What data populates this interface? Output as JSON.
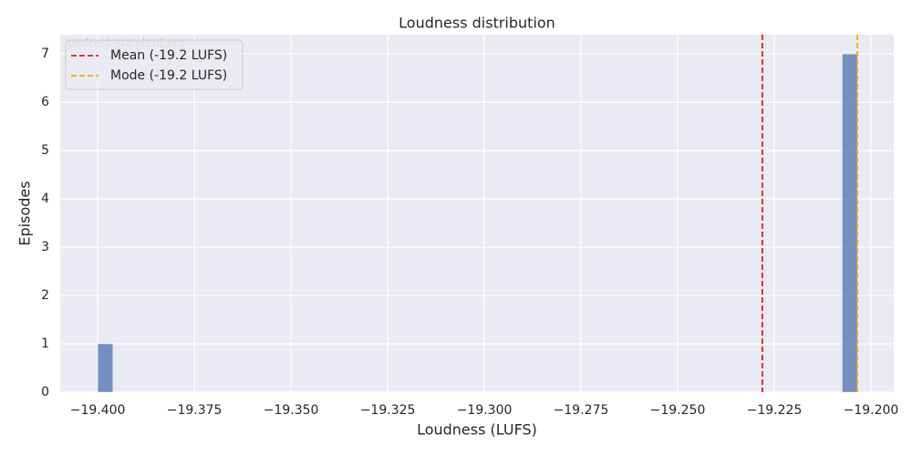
{
  "chart_data": {
    "type": "histogram",
    "title": "Loudness distribution",
    "xlabel": "Loudness (LUFS)",
    "ylabel": "Episodes",
    "watermark": "podcast-standard.org",
    "bins": [
      -19.4,
      -19.39607,
      -19.39214,
      -19.38821,
      -19.38428,
      -19.38035,
      -19.37642,
      -19.37249,
      -19.36856,
      -19.36463,
      -19.3607,
      -19.35677,
      -19.35284,
      -19.34891,
      -19.34498,
      -19.34105,
      -19.33712,
      -19.33319,
      -19.32926,
      -19.32533,
      -19.3214,
      -19.31747,
      -19.31354,
      -19.30961,
      -19.30568,
      -19.30175,
      -19.29782,
      -19.29389,
      -19.28996,
      -19.28603,
      -19.2821,
      -19.27817,
      -19.27424,
      -19.27031,
      -19.26638,
      -19.26245,
      -19.25852,
      -19.25459,
      -19.25066,
      -19.24673,
      -19.2428,
      -19.23887,
      -19.23494,
      -19.23101,
      -19.22708,
      -19.22315,
      -19.21922,
      -19.21529,
      -19.21136,
      -19.20743,
      -19.2035
    ],
    "values": [
      1,
      0,
      0,
      0,
      0,
      0,
      0,
      0,
      0,
      0,
      0,
      0,
      0,
      0,
      0,
      0,
      0,
      0,
      0,
      0,
      0,
      0,
      0,
      0,
      0,
      0,
      0,
      0,
      0,
      0,
      0,
      0,
      0,
      0,
      0,
      0,
      0,
      0,
      0,
      0,
      0,
      0,
      0,
      0,
      0,
      0,
      0,
      0,
      0,
      7
    ],
    "color": "#4c72b0",
    "lines": [
      {
        "name": "Mean (-19.2 LUFS)",
        "value": -19.2281,
        "color": "#e41a1c"
      },
      {
        "name": "Mode (-19.2 LUFS)",
        "value": -19.2035,
        "color": "#ffa500"
      }
    ],
    "legend": "upper left",
    "xlim": [
      -19.4097,
      -19.1941
    ],
    "xticks": [
      {
        "value": -19.4,
        "label": "−19.400"
      },
      {
        "value": -19.375,
        "label": "−19.375"
      },
      {
        "value": -19.35,
        "label": "−19.350"
      },
      {
        "value": -19.325,
        "label": "−19.325"
      },
      {
        "value": -19.3,
        "label": "−19.300"
      },
      {
        "value": -19.275,
        "label": "−19.275"
      },
      {
        "value": -19.25,
        "label": "−19.250"
      },
      {
        "value": -19.225,
        "label": "−19.225"
      },
      {
        "value": -19.2,
        "label": "−19.200"
      }
    ],
    "ylim": [
      0,
      7.4
    ],
    "yticks": [
      0,
      1,
      2,
      3,
      4,
      5,
      6,
      7
    ],
    "grid": true
  }
}
